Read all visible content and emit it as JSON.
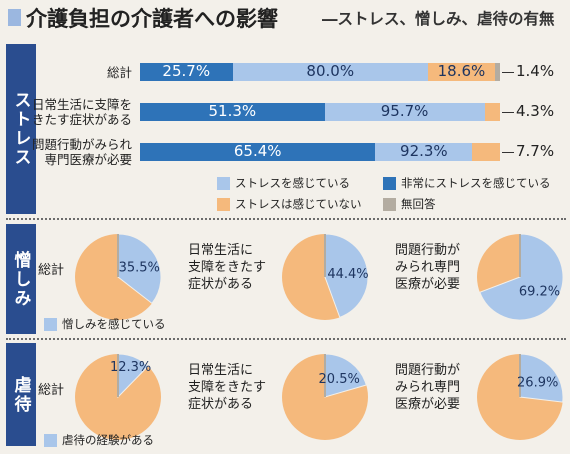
{
  "title": {
    "main": "介護負担の介護者への影響",
    "sub": "―ストレス、憎しみ、虐待の有無"
  },
  "sections": {
    "stress": "ストレス",
    "hatred": "憎しみ",
    "abuse": "虐待"
  },
  "colors": {
    "light_blue": "#a9c6ea",
    "dark_blue": "#2e73b8",
    "orange": "#f5b97c",
    "gray": "#b3aca1",
    "sidebar": "#2a4d8f"
  },
  "chart_data": [
    {
      "type": "bar",
      "stacked": true,
      "categories": [
        "総計",
        "日常生活に支障をきたす症状がある",
        "問題行動がみられ専門医療が必要"
      ],
      "category_lines": [
        [
          "総計"
        ],
        [
          "日常生活に支障を",
          "きたす症状がある"
        ],
        [
          "問題行動がみられ",
          "専門医療が必要"
        ]
      ],
      "series": [
        {
          "name": "ストレスを感じている",
          "values": [
            80.0,
            95.7,
            92.3
          ],
          "labels": [
            "80.0%",
            "95.7%",
            "92.3%"
          ]
        },
        {
          "name": "ストレスは感じていない",
          "values": [
            18.6,
            4.3,
            7.7
          ],
          "labels": [
            "18.6%",
            "4.3%",
            "7.7%"
          ]
        },
        {
          "name": "無回答",
          "values": [
            1.4,
            0,
            0
          ],
          "labels": [
            "1.4%",
            "",
            ""
          ]
        }
      ],
      "overlay_series": {
        "name": "非常にストレスを感じている",
        "values": [
          25.7,
          51.3,
          65.4
        ],
        "labels": [
          "25.7%",
          "51.3%",
          "65.4%"
        ]
      },
      "legend": [
        "ストレスを感じている",
        "非常にストレスを感じている",
        "ストレスは感じていない",
        "無回答"
      ],
      "xlim": [
        0,
        100
      ]
    },
    {
      "type": "pie",
      "section": "憎しみ",
      "legend": "憎しみを感じている",
      "pies": [
        {
          "label_lines": [
            "総計"
          ],
          "value": 35.5,
          "label": "35.5%"
        },
        {
          "label_lines": [
            "日常生活に",
            "支障をきたす",
            "症状がある"
          ],
          "value": 44.4,
          "label": "44.4%"
        },
        {
          "label_lines": [
            "問題行動が",
            "みられ専門",
            "医療が必要"
          ],
          "value": 69.2,
          "label": "69.2%"
        }
      ]
    },
    {
      "type": "pie",
      "section": "虐待",
      "legend": "虐待の経験がある",
      "pies": [
        {
          "label_lines": [
            "総計"
          ],
          "value": 12.3,
          "label": "12.3%"
        },
        {
          "label_lines": [
            "日常生活に",
            "支障をきたす",
            "症状がある"
          ],
          "value": 20.5,
          "label": "20.5%"
        },
        {
          "label_lines": [
            "問題行動が",
            "みられ専門",
            "医療が必要"
          ],
          "value": 26.9,
          "label": "26.9%"
        }
      ]
    }
  ]
}
